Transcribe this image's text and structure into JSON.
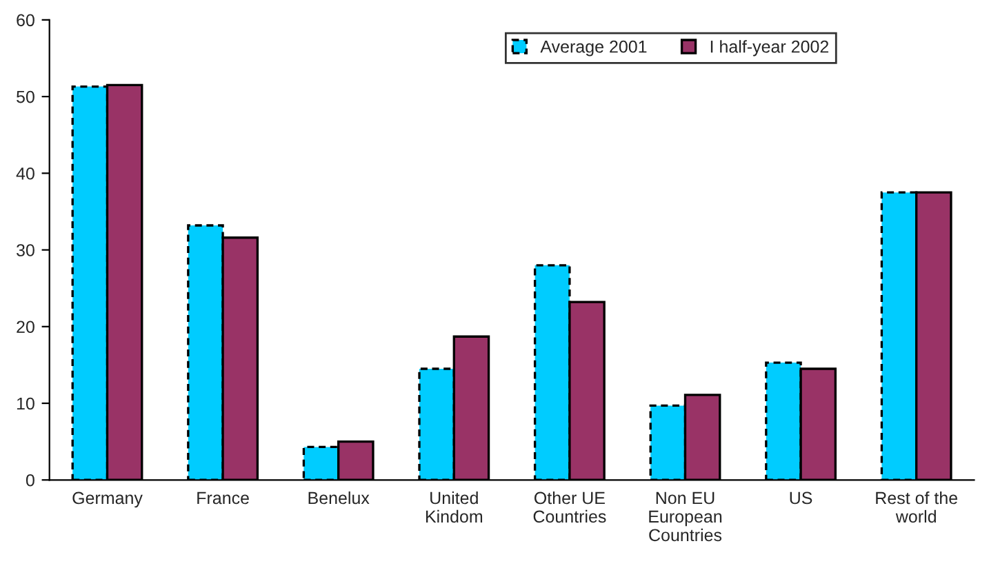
{
  "chart_data": {
    "type": "bar",
    "categories": [
      "Germany",
      "France",
      "Benelux",
      "United\nKindom",
      "Other UE\nCountries",
      "Non EU\nEuropean\nCountries",
      "US",
      "Rest of the\nworld"
    ],
    "series": [
      {
        "name": "Average 2001",
        "color": "#00ccff",
        "line_style": "dashed",
        "values": [
          51.3,
          33.2,
          4.3,
          14.5,
          28.0,
          9.7,
          15.3,
          37.5
        ]
      },
      {
        "name": "I half-year 2002",
        "color": "#993366",
        "line_style": "solid",
        "values": [
          51.5,
          31.6,
          5.0,
          18.7,
          23.2,
          11.1,
          14.5,
          37.5
        ]
      }
    ],
    "ylim": [
      0,
      60
    ],
    "yticks": [
      0,
      10,
      20,
      30,
      40,
      50,
      60
    ],
    "grid": false,
    "legend": "top right"
  }
}
